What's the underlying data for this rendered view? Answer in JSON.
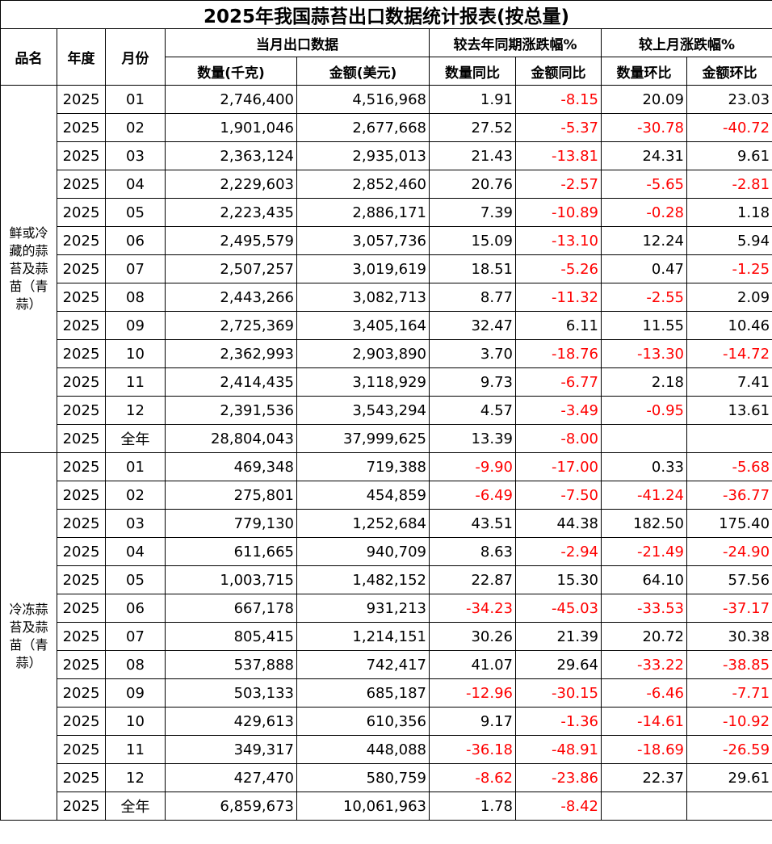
{
  "title": "2025年我国蒜苔出口数据统计报表(按总量)",
  "table": {
    "header": {
      "product": "品名",
      "year": "年度",
      "month": "月份",
      "groups": [
        "当月出口数据",
        "较去年同期涨跌幅%",
        "较上月涨跌幅%"
      ],
      "columns": [
        "数量(千克)",
        "金额(美元)",
        "数量同比",
        "金额同比",
        "数量环比",
        "金额环比"
      ]
    },
    "sections": [
      {
        "product": "鲜或冷藏的蒜苔及蒜苗（青蒜）",
        "rows": [
          [
            "2025",
            "01",
            "2,746,400",
            "4,516,968",
            "1.91",
            "-8.15",
            "20.09",
            "23.03"
          ],
          [
            "2025",
            "02",
            "1,901,046",
            "2,677,668",
            "27.52",
            "-5.37",
            "-30.78",
            "-40.72"
          ],
          [
            "2025",
            "03",
            "2,363,124",
            "2,935,013",
            "21.43",
            "-13.81",
            "24.31",
            "9.61"
          ],
          [
            "2025",
            "04",
            "2,229,603",
            "2,852,460",
            "20.76",
            "-2.57",
            "-5.65",
            "-2.81"
          ],
          [
            "2025",
            "05",
            "2,223,435",
            "2,886,171",
            "7.39",
            "-10.89",
            "-0.28",
            "1.18"
          ],
          [
            "2025",
            "06",
            "2,495,579",
            "3,057,736",
            "15.09",
            "-13.10",
            "12.24",
            "5.94"
          ],
          [
            "2025",
            "07",
            "2,507,257",
            "3,019,619",
            "18.51",
            "-5.26",
            "0.47",
            "-1.25"
          ],
          [
            "2025",
            "08",
            "2,443,266",
            "3,082,713",
            "8.77",
            "-11.32",
            "-2.55",
            "2.09"
          ],
          [
            "2025",
            "09",
            "2,725,369",
            "3,405,164",
            "32.47",
            "6.11",
            "11.55",
            "10.46"
          ],
          [
            "2025",
            "10",
            "2,362,993",
            "2,903,890",
            "3.70",
            "-18.76",
            "-13.30",
            "-14.72"
          ],
          [
            "2025",
            "11",
            "2,414,435",
            "3,118,929",
            "9.73",
            "-6.77",
            "2.18",
            "7.41"
          ],
          [
            "2025",
            "12",
            "2,391,536",
            "3,543,294",
            "4.57",
            "-3.49",
            "-0.95",
            "13.61"
          ],
          [
            "2025",
            "全年",
            "28,804,043",
            "37,999,625",
            "13.39",
            "-8.00"
          ]
        ]
      },
      {
        "product": "冷冻蒜苔及蒜苗（青蒜）",
        "rows": [
          [
            "2025",
            "01",
            "469,348",
            "719,388",
            "-9.90",
            "-17.00",
            "0.33",
            "-5.68"
          ],
          [
            "2025",
            "02",
            "275,801",
            "454,859",
            "-6.49",
            "-7.50",
            "-41.24",
            "-36.77"
          ],
          [
            "2025",
            "03",
            "779,130",
            "1,252,684",
            "43.51",
            "44.38",
            "182.50",
            "175.40"
          ],
          [
            "2025",
            "04",
            "611,665",
            "940,709",
            "8.63",
            "-2.94",
            "-21.49",
            "-24.90"
          ],
          [
            "2025",
            "05",
            "1,003,715",
            "1,482,152",
            "22.87",
            "15.30",
            "64.10",
            "57.56"
          ],
          [
            "2025",
            "06",
            "667,178",
            "931,213",
            "-34.23",
            "-45.03",
            "-33.53",
            "-37.17"
          ],
          [
            "2025",
            "07",
            "805,415",
            "1,214,151",
            "30.26",
            "21.39",
            "20.72",
            "30.38"
          ],
          [
            "2025",
            "08",
            "537,888",
            "742,417",
            "41.07",
            "29.64",
            "-33.22",
            "-38.85"
          ],
          [
            "2025",
            "09",
            "503,133",
            "685,187",
            "-12.96",
            "-30.15",
            "-6.46",
            "-7.71"
          ],
          [
            "2025",
            "10",
            "429,613",
            "610,356",
            "9.17",
            "-1.36",
            "-14.61",
            "-10.92"
          ],
          [
            "2025",
            "11",
            "349,317",
            "448,088",
            "-36.18",
            "-48.91",
            "-18.69",
            "-26.59"
          ],
          [
            "2025",
            "12",
            "427,470",
            "580,759",
            "-8.62",
            "-23.86",
            "22.37",
            "29.61"
          ],
          [
            "2025",
            "全年",
            "6,859,673",
            "10,061,963",
            "1.78",
            "-8.42"
          ]
        ]
      }
    ]
  }
}
